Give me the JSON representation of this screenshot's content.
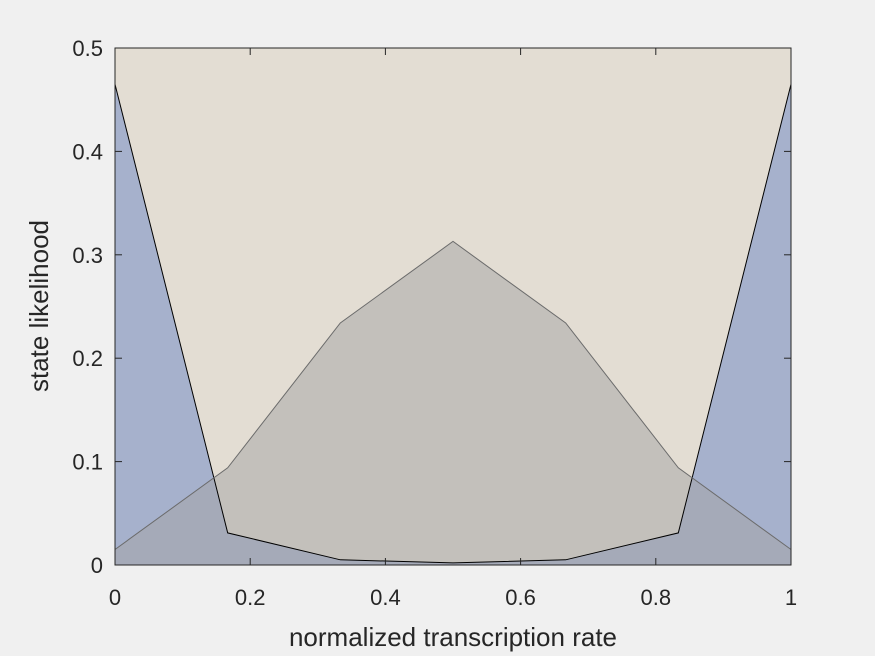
{
  "chart_data": {
    "type": "area",
    "title": "",
    "xlabel": "normalized transcription rate",
    "ylabel": "state likelihood",
    "xlim": [
      0,
      1
    ],
    "ylim": [
      0,
      0.5
    ],
    "x_ticks": [
      0,
      0.2,
      0.4,
      0.6,
      0.8,
      1
    ],
    "x_tick_labels": [
      "0",
      "0.2",
      "0.4",
      "0.6",
      "0.8",
      "1"
    ],
    "y_ticks": [
      0,
      0.1,
      0.2,
      0.3,
      0.4,
      0.5
    ],
    "y_tick_labels": [
      "0",
      "0.1",
      "0.2",
      "0.3",
      "0.4",
      "0.5"
    ],
    "grid": false,
    "legend": "none",
    "x": [
      0,
      0.1667,
      0.3333,
      0.5,
      0.6667,
      0.8333,
      1
    ],
    "series": [
      {
        "values": [
          0.465,
          0.031,
          0.005,
          0.002,
          0.005,
          0.031,
          0.465
        ],
        "color": "#a6b1cc",
        "opacity": 1,
        "stroke": "#000000"
      },
      {
        "values": [
          0.015,
          0.094,
          0.234,
          0.313,
          0.234,
          0.094,
          0.015
        ],
        "color": "#a3a3a3",
        "opacity": 0.5,
        "stroke": "#6b6b6b"
      }
    ],
    "background_color": "#e3ddd3",
    "axes_color": "#262626"
  }
}
